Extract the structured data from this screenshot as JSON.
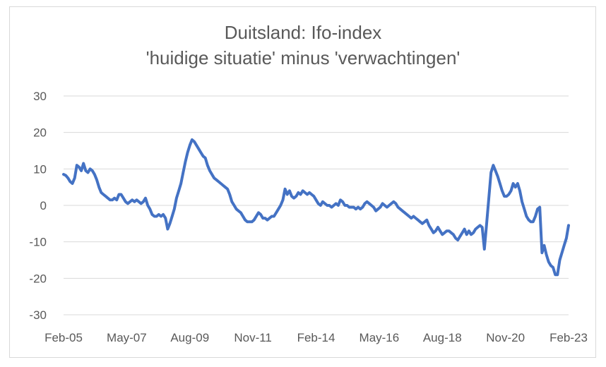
{
  "chart_data": {
    "type": "line",
    "title_lines": [
      "Duitsland: Ifo-index",
      "'huidige situatie' minus 'verwachtingen'"
    ],
    "xlabel": "",
    "ylabel": "",
    "ylim": [
      -30,
      30
    ],
    "yticks": [
      30,
      20,
      10,
      0,
      -10,
      -20,
      -30
    ],
    "xticks": [
      "Feb-05",
      "May-07",
      "Aug-09",
      "Nov-11",
      "Feb-14",
      "May-16",
      "Aug-18",
      "Nov-20",
      "Feb-23"
    ],
    "x_start": "2005-02",
    "x_end": "2023-02",
    "grid": true,
    "legend": "none",
    "line_color": "#4472c4",
    "values": [
      8.5,
      8.2,
      7.5,
      6.5,
      6.0,
      7.5,
      11.0,
      10.5,
      9.5,
      11.5,
      9.5,
      9.0,
      10.0,
      9.5,
      8.5,
      7.0,
      5.0,
      3.5,
      3.0,
      2.5,
      2.0,
      1.5,
      1.5,
      2.0,
      1.5,
      3.0,
      3.0,
      2.0,
      1.0,
      0.5,
      1.0,
      1.5,
      1.0,
      1.5,
      1.0,
      0.5,
      1.0,
      2.0,
      0.0,
      -1.0,
      -2.5,
      -3.0,
      -3.0,
      -2.5,
      -3.0,
      -2.5,
      -3.5,
      -6.5,
      -5.0,
      -3.0,
      -1.0,
      2.0,
      4.0,
      6.0,
      9.0,
      12.0,
      14.5,
      16.5,
      18.0,
      17.5,
      16.5,
      15.5,
      14.5,
      13.5,
      13.0,
      11.0,
      9.5,
      8.5,
      7.5,
      7.0,
      6.5,
      6.0,
      5.5,
      5.0,
      4.5,
      3.0,
      1.0,
      0.0,
      -1.0,
      -1.5,
      -2.0,
      -3.0,
      -4.0,
      -4.5,
      -4.5,
      -4.5,
      -4.0,
      -3.0,
      -2.0,
      -2.5,
      -3.5,
      -3.5,
      -4.0,
      -3.5,
      -3.0,
      -3.0,
      -2.0,
      -1.0,
      0.0,
      1.5,
      4.5,
      3.0,
      4.0,
      2.5,
      2.0,
      2.5,
      3.5,
      3.0,
      4.0,
      3.5,
      3.0,
      3.5,
      3.0,
      2.5,
      1.5,
      0.5,
      0.0,
      1.0,
      0.5,
      0.0,
      0.0,
      -0.5,
      0.0,
      0.5,
      0.0,
      1.5,
      1.0,
      0.0,
      0.0,
      -0.5,
      -0.5,
      -0.5,
      -1.0,
      -0.5,
      -1.0,
      -0.5,
      0.5,
      1.0,
      0.5,
      0.0,
      -0.5,
      -1.5,
      -1.0,
      -0.5,
      0.5,
      0.0,
      -0.5,
      0.0,
      0.5,
      1.0,
      0.5,
      -0.5,
      -1.0,
      -1.5,
      -2.0,
      -2.5,
      -3.0,
      -3.5,
      -3.0,
      -3.5,
      -4.0,
      -4.5,
      -5.0,
      -4.5,
      -4.0,
      -5.5,
      -6.5,
      -7.5,
      -7.0,
      -6.0,
      -7.0,
      -8.0,
      -7.5,
      -7.0,
      -7.0,
      -7.5,
      -8.0,
      -9.0,
      -9.5,
      -8.5,
      -7.5,
      -6.5,
      -8.0,
      -7.0,
      -8.0,
      -7.5,
      -6.5,
      -6.0,
      -5.5,
      -6.0,
      -12.0,
      -5.0,
      2.0,
      9.0,
      11.0,
      9.5,
      8.0,
      6.0,
      4.0,
      2.5,
      2.5,
      3.0,
      4.0,
      6.0,
      5.0,
      6.0,
      4.0,
      1.0,
      -1.0,
      -3.0,
      -4.0,
      -4.5,
      -4.5,
      -3.0,
      -1.0,
      -0.5,
      -13.0,
      -11.0,
      -13.5,
      -15.5,
      -16.5,
      -17.0,
      -19.0,
      -19.0,
      -15.0,
      -13.0,
      -11.0,
      -9.0,
      -5.5
    ]
  }
}
